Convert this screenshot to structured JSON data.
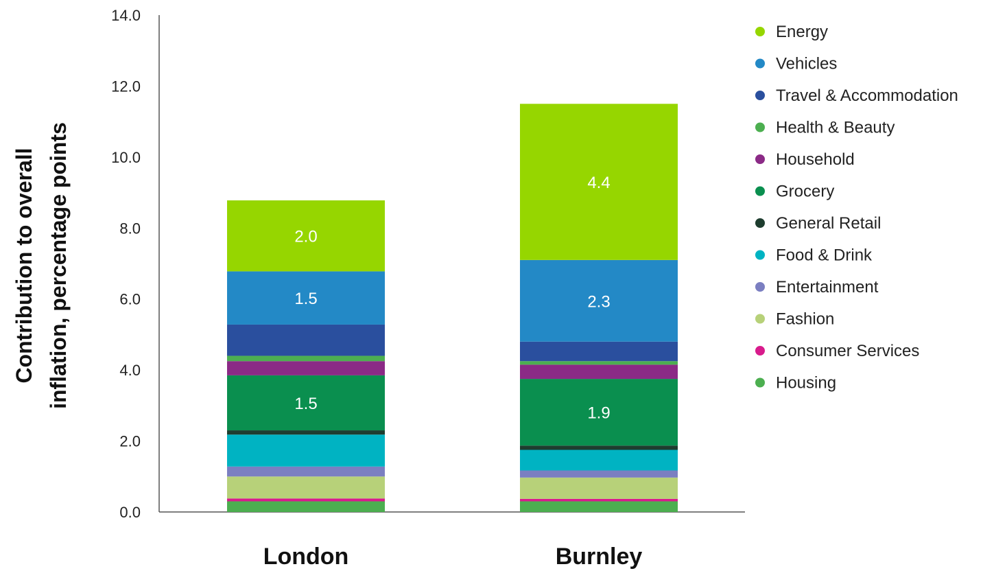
{
  "chart_data": {
    "type": "bar",
    "stacked": true,
    "categories": [
      "London",
      "Burnley"
    ],
    "ylabel_lines": [
      "Contribution to overall",
      "inflation, percentage points"
    ],
    "ylim": [
      0,
      14
    ],
    "yticks": [
      "0.0",
      "2.0",
      "4.0",
      "6.0",
      "8.0",
      "10.0",
      "12.0",
      "14.0"
    ],
    "grid": false,
    "legend_position": "right",
    "series": [
      {
        "name": "Housing",
        "color": "#4caf50",
        "values": [
          0.3,
          0.3
        ],
        "labels": [
          "",
          ""
        ]
      },
      {
        "name": "Consumer Services",
        "color": "#d81b8c",
        "values": [
          0.08,
          0.07
        ],
        "labels": [
          "",
          ""
        ]
      },
      {
        "name": "Fashion",
        "color": "#b7d179",
        "values": [
          0.62,
          0.6
        ],
        "labels": [
          "",
          ""
        ]
      },
      {
        "name": "Entertainment",
        "color": "#7b7fc1",
        "values": [
          0.28,
          0.2
        ],
        "labels": [
          "",
          ""
        ]
      },
      {
        "name": "Food & Drink",
        "color": "#00b3c2",
        "values": [
          0.9,
          0.58
        ],
        "labels": [
          "",
          ""
        ]
      },
      {
        "name": "General Retail",
        "color": "#1e3d2f",
        "values": [
          0.12,
          0.12
        ],
        "labels": [
          "",
          ""
        ]
      },
      {
        "name": "Grocery",
        "color": "#0a8f4f",
        "values": [
          1.55,
          1.88
        ],
        "labels": [
          "1.5",
          "1.9"
        ]
      },
      {
        "name": "Household",
        "color": "#8b2a86",
        "values": [
          0.4,
          0.4
        ],
        "labels": [
          "",
          ""
        ]
      },
      {
        "name": "Health & Beauty",
        "color": "#4caf50",
        "values": [
          0.15,
          0.1
        ],
        "labels": [
          "",
          ""
        ]
      },
      {
        "name": "Travel & Accommodation",
        "color": "#2a4f9e",
        "values": [
          0.88,
          0.55
        ],
        "labels": [
          "",
          ""
        ]
      },
      {
        "name": "Vehicles",
        "color": "#2389c6",
        "values": [
          1.5,
          2.3
        ],
        "labels": [
          "1.5",
          "2.3"
        ]
      },
      {
        "name": "Energy",
        "color": "#96d600",
        "values": [
          2.0,
          4.4
        ],
        "labels": [
          "2.0",
          "4.4"
        ]
      }
    ]
  }
}
